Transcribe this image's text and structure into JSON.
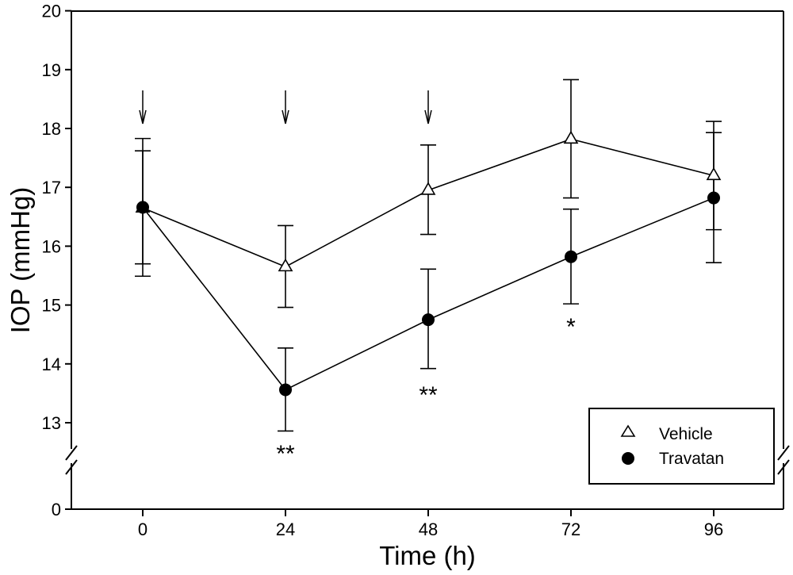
{
  "chart_data": {
    "type": "line",
    "title": "",
    "xlabel": "Time (h)",
    "ylabel": "IOP (mmHg)",
    "x": [
      0,
      24,
      48,
      72,
      96
    ],
    "x_ticks": [
      "0",
      "24",
      "48",
      "72",
      "96"
    ],
    "y_ticks": [
      "0",
      "13",
      "14",
      "15",
      "16",
      "17",
      "18",
      "19",
      "20"
    ],
    "ylim_upper": [
      12.5,
      20
    ],
    "ylim_lower": [
      0,
      0.5
    ],
    "y_axis_break": true,
    "series": [
      {
        "name": "Vehicle",
        "marker": "open-triangle",
        "color": "#000000",
        "values": [
          16.65,
          15.65,
          16.95,
          17.82,
          17.2
        ],
        "error_upper": [
          17.62,
          16.35,
          17.72,
          18.83,
          18.12
        ],
        "error_lower": [
          15.7,
          14.96,
          16.2,
          16.82,
          16.28
        ]
      },
      {
        "name": "Travatan",
        "marker": "filled-circle",
        "color": "#000000",
        "values": [
          16.66,
          13.56,
          14.75,
          15.82,
          16.82
        ],
        "error_upper": [
          17.83,
          14.27,
          15.61,
          16.63,
          17.93
        ],
        "error_lower": [
          15.49,
          12.86,
          13.92,
          15.02,
          15.72
        ]
      }
    ],
    "dosing_arrows_x": [
      0,
      24,
      48
    ],
    "annotations": [
      {
        "x": 24,
        "text": "**"
      },
      {
        "x": 48,
        "text": "**"
      },
      {
        "x": 72,
        "text": "*"
      }
    ],
    "legend_position": "bottom-right",
    "grid": false
  }
}
